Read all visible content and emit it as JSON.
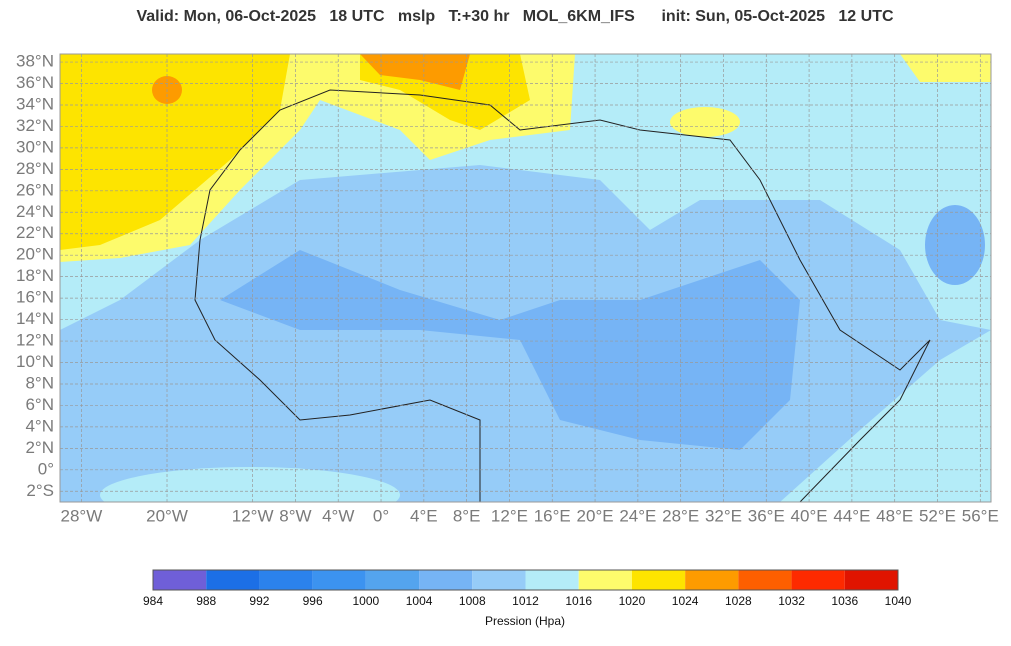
{
  "title": "Valid: Mon, 06-Oct-2025   18 UTC   mslp   T:+30 hr   MOL_6KM_IFS      init: Sun, 05-Oct-2025   12 UTC",
  "map": {
    "lonlim": [
      -30,
      57
    ],
    "latlim": [
      -3,
      38.75
    ],
    "lat_ticks": [
      {
        "value": 38,
        "label": "38°N"
      },
      {
        "value": 36,
        "label": "36°N"
      },
      {
        "value": 34,
        "label": "34°N"
      },
      {
        "value": 32,
        "label": "32°N"
      },
      {
        "value": 30,
        "label": "30°N"
      },
      {
        "value": 28,
        "label": "28°N"
      },
      {
        "value": 26,
        "label": "26°N"
      },
      {
        "value": 24,
        "label": "24°N"
      },
      {
        "value": 22,
        "label": "22°N"
      },
      {
        "value": 20,
        "label": "20°N"
      },
      {
        "value": 18,
        "label": "18°N"
      },
      {
        "value": 16,
        "label": "16°N"
      },
      {
        "value": 14,
        "label": "14°N"
      },
      {
        "value": 12,
        "label": "12°N"
      },
      {
        "value": 10,
        "label": "10°N"
      },
      {
        "value": 8,
        "label": "8°N"
      },
      {
        "value": 6,
        "label": "6°N"
      },
      {
        "value": 4,
        "label": "4°N"
      },
      {
        "value": 2,
        "label": "2°N"
      },
      {
        "value": 0,
        "label": "0°"
      },
      {
        "value": -2,
        "label": "2°S"
      }
    ],
    "lon_ticks": [
      {
        "value": -28,
        "label": "28°W"
      },
      {
        "value": -20,
        "label": "20°W"
      },
      {
        "value": -12,
        "label": "12°W"
      },
      {
        "value": -8,
        "label": "8°W"
      },
      {
        "value": -4,
        "label": "4°W"
      },
      {
        "value": 0,
        "label": "0°"
      },
      {
        "value": 4,
        "label": "4°E"
      },
      {
        "value": 8,
        "label": "8°E"
      },
      {
        "value": 12,
        "label": "12°E"
      },
      {
        "value": 16,
        "label": "16°E"
      },
      {
        "value": 20,
        "label": "20°E"
      },
      {
        "value": 24,
        "label": "24°E"
      },
      {
        "value": 28,
        "label": "28°E"
      },
      {
        "value": 32,
        "label": "32°E"
      },
      {
        "value": 36,
        "label": "36°E"
      },
      {
        "value": 40,
        "label": "40°E"
      },
      {
        "value": 44,
        "label": "44°E"
      },
      {
        "value": 48,
        "label": "48°E"
      },
      {
        "value": 52,
        "label": "52°E"
      },
      {
        "value": 56,
        "label": "56°E"
      }
    ]
  },
  "colorbar": {
    "label": "Pression (Hpa)",
    "levels": [
      984,
      988,
      992,
      996,
      1000,
      1004,
      1008,
      1012,
      1016,
      1020,
      1024,
      1028,
      1032,
      1036,
      1040
    ],
    "colors": [
      "#6f5fd8",
      "#1c6fe6",
      "#2b82ec",
      "#3c93f0",
      "#54a4ee",
      "#76b4f5",
      "#96ccf8",
      "#b4ecf8",
      "#fdfb6c",
      "#fde400",
      "#fd9b00",
      "#fd5f00",
      "#fd2a00",
      "#e01400"
    ]
  }
}
